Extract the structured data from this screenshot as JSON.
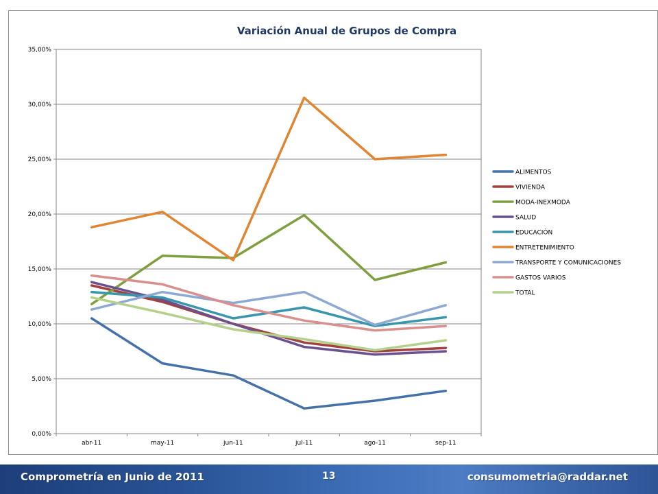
{
  "footer": {
    "left_text": "Comprometría en Junio de 2011",
    "page_number": "13",
    "right_text": "consumometria@raddar.net"
  },
  "colors": {
    "footer_gradient_start": "#1d3e7a",
    "footer_gradient_end": "#4d7cc4",
    "title": "#1f3864"
  },
  "chart_data": {
    "type": "line",
    "title": "Variación Anual de Grupos de Compra",
    "xlabel": "",
    "ylabel": "",
    "categories": [
      "abr-11",
      "may-11",
      "jun-11",
      "jul-11",
      "ago-11",
      "sep-11"
    ],
    "ylim": [
      0,
      35
    ],
    "yticks": [
      0,
      5,
      10,
      15,
      20,
      25,
      30,
      35
    ],
    "ytick_labels": [
      "0,00%",
      "5,00%",
      "10,00%",
      "15,00%",
      "20,00%",
      "25,00%",
      "30,00%",
      "35,00%"
    ],
    "grid": true,
    "legend_position": "right",
    "series": [
      {
        "name": "ALIMENTOS",
        "color": "#4472a8",
        "values": [
          10.5,
          6.4,
          5.3,
          2.3,
          3.0,
          3.9
        ]
      },
      {
        "name": "VIVIENDA",
        "color": "#a2403d",
        "values": [
          13.5,
          12.0,
          10.0,
          8.3,
          7.5,
          7.8
        ]
      },
      {
        "name": "MODA-INEXMODA",
        "color": "#7f9f3e",
        "values": [
          11.8,
          16.2,
          16.0,
          19.9,
          14.0,
          15.6
        ]
      },
      {
        "name": "SALUD",
        "color": "#6b5090",
        "values": [
          13.8,
          12.2,
          10.0,
          7.9,
          7.2,
          7.5
        ]
      },
      {
        "name": "EDUCACIÓN",
        "color": "#3796ab",
        "values": [
          12.9,
          12.4,
          10.5,
          11.5,
          9.8,
          10.6
        ]
      },
      {
        "name": "ENTRETENIMIENTO",
        "color": "#e08532",
        "values": [
          18.8,
          20.2,
          15.8,
          30.6,
          25.0,
          25.4
        ]
      },
      {
        "name": "TRANSPORTE Y COMUNICACIONES",
        "color": "#8ea8d4",
        "values": [
          11.3,
          12.9,
          11.9,
          12.9,
          9.9,
          11.7
        ]
      },
      {
        "name": "GASTOS VARIOS",
        "color": "#d88f8e",
        "values": [
          14.4,
          13.6,
          11.7,
          10.3,
          9.4,
          9.8
        ]
      },
      {
        "name": "TOTAL",
        "color": "#b5d08a",
        "values": [
          12.4,
          11.0,
          9.5,
          8.6,
          7.6,
          8.5
        ]
      }
    ]
  }
}
